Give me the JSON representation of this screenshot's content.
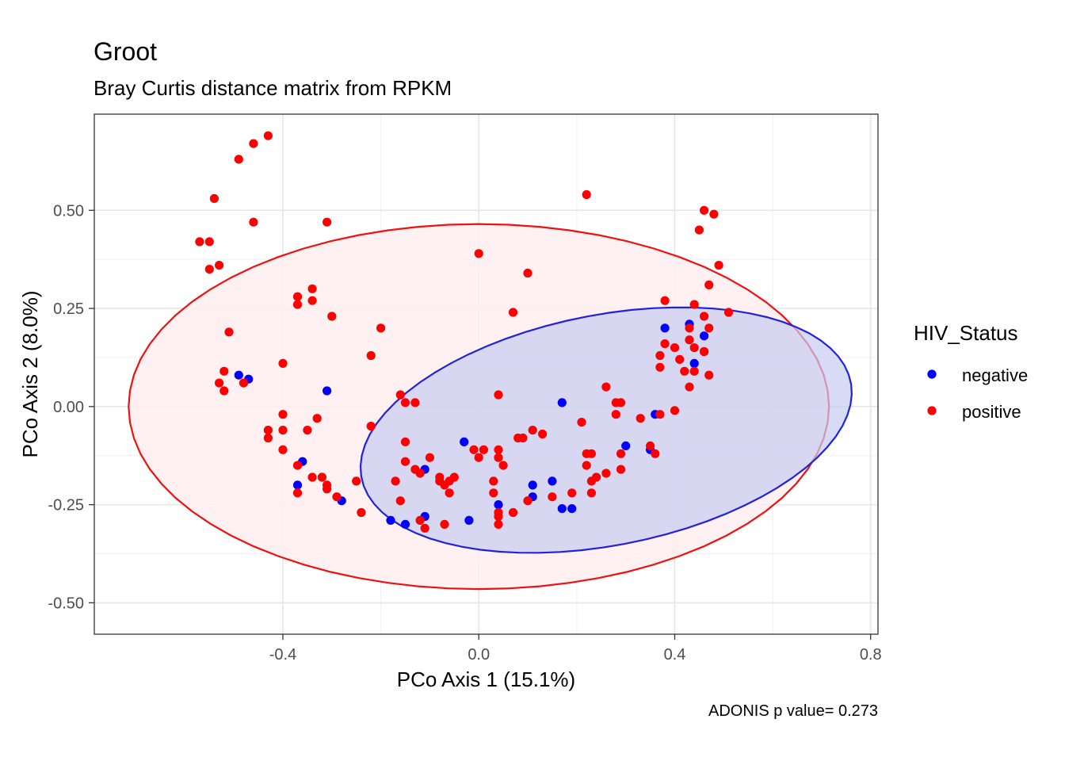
{
  "chart_data": {
    "type": "scatter",
    "title": "Groot",
    "subtitle": "Bray Curtis distance matrix from RPKM",
    "xlabel": "PCo Axis 1 (15.1%)",
    "ylabel": "PCo Axis 2 (8.0%)",
    "caption": "ADONIS p value= 0.273",
    "xlim": [
      -0.785,
      0.815
    ],
    "ylim": [
      -0.58,
      0.745
    ],
    "x_ticks": [
      -0.4,
      0.0,
      0.4,
      0.8
    ],
    "x_tick_labels": [
      "-0.4",
      "0.0",
      "0.4",
      "0.8"
    ],
    "y_ticks": [
      -0.5,
      -0.25,
      0.0,
      0.25,
      0.5
    ],
    "y_tick_labels": [
      "-0.50",
      "-0.25",
      "0.00",
      "0.25",
      "0.50"
    ],
    "grid": true,
    "legend": {
      "title": "HIV_Status",
      "position": "right",
      "entries": [
        "negative",
        "positive"
      ]
    },
    "ellipses": [
      {
        "series": "positive",
        "center": [
          0.0,
          0.0
        ],
        "semi_axes": [
          0.715,
          0.465
        ],
        "angle_deg": 0,
        "stroke": "#ee1111",
        "fill": "#ffeeee",
        "fill_opacity": 0.85
      },
      {
        "series": "negative",
        "center": [
          0.26,
          -0.06
        ],
        "semi_axes": [
          0.515,
          0.29
        ],
        "angle_deg": 16,
        "stroke": "#2222dd",
        "fill": "#c6ccf2",
        "fill_opacity": 0.7
      }
    ],
    "series": [
      {
        "name": "negative",
        "color": "#0000ff",
        "points": [
          [
            -0.49,
            0.08
          ],
          [
            -0.47,
            0.07
          ],
          [
            -0.31,
            0.04
          ],
          [
            -0.36,
            -0.14
          ],
          [
            -0.37,
            -0.2
          ],
          [
            -0.28,
            -0.24
          ],
          [
            -0.18,
            -0.29
          ],
          [
            -0.15,
            -0.3
          ],
          [
            -0.11,
            -0.16
          ],
          [
            -0.11,
            -0.28
          ],
          [
            -0.03,
            -0.09
          ],
          [
            -0.02,
            -0.29
          ],
          [
            0.04,
            -0.25
          ],
          [
            0.11,
            -0.2
          ],
          [
            0.11,
            -0.23
          ],
          [
            0.15,
            -0.19
          ],
          [
            0.17,
            0.01
          ],
          [
            0.17,
            -0.26
          ],
          [
            0.19,
            -0.26
          ],
          [
            0.3,
            -0.1
          ],
          [
            0.35,
            -0.11
          ],
          [
            0.36,
            -0.02
          ],
          [
            0.38,
            0.2
          ],
          [
            0.43,
            0.21
          ],
          [
            0.44,
            0.11
          ],
          [
            0.46,
            0.18
          ],
          [
            0.46,
            0.14
          ]
        ]
      },
      {
        "name": "positive",
        "color": "#ff0000",
        "points": [
          [
            -0.43,
            0.69
          ],
          [
            -0.46,
            0.67
          ],
          [
            -0.49,
            0.63
          ],
          [
            -0.54,
            0.53
          ],
          [
            -0.46,
            0.47
          ],
          [
            -0.57,
            0.42
          ],
          [
            -0.55,
            0.42
          ],
          [
            -0.53,
            0.36
          ],
          [
            -0.55,
            0.35
          ],
          [
            -0.31,
            0.47
          ],
          [
            -0.34,
            0.3
          ],
          [
            -0.37,
            0.28
          ],
          [
            -0.34,
            0.27
          ],
          [
            -0.37,
            0.26
          ],
          [
            -0.3,
            0.23
          ],
          [
            -0.51,
            0.19
          ],
          [
            -0.4,
            0.11
          ],
          [
            -0.52,
            0.09
          ],
          [
            -0.53,
            0.06
          ],
          [
            -0.48,
            0.06
          ],
          [
            -0.52,
            0.04
          ],
          [
            -0.4,
            -0.02
          ],
          [
            -0.33,
            -0.03
          ],
          [
            -0.43,
            -0.06
          ],
          [
            -0.4,
            -0.06
          ],
          [
            -0.35,
            -0.06
          ],
          [
            -0.43,
            -0.08
          ],
          [
            -0.4,
            -0.11
          ],
          [
            -0.37,
            -0.15
          ],
          [
            -0.34,
            -0.18
          ],
          [
            -0.32,
            -0.18
          ],
          [
            -0.31,
            -0.2
          ],
          [
            -0.31,
            -0.21
          ],
          [
            -0.37,
            -0.22
          ],
          [
            -0.29,
            -0.23
          ],
          [
            -0.25,
            -0.19
          ],
          [
            -0.24,
            -0.27
          ],
          [
            -0.2,
            0.2
          ],
          [
            -0.22,
            0.13
          ],
          [
            -0.22,
            -0.05
          ],
          [
            -0.16,
            0.03
          ],
          [
            -0.15,
            0.01
          ],
          [
            -0.13,
            0.01
          ],
          [
            -0.15,
            -0.09
          ],
          [
            -0.17,
            -0.19
          ],
          [
            -0.16,
            -0.24
          ],
          [
            -0.15,
            -0.14
          ],
          [
            -0.13,
            -0.16
          ],
          [
            -0.12,
            -0.17
          ],
          [
            -0.1,
            -0.13
          ],
          [
            -0.12,
            -0.29
          ],
          [
            -0.11,
            -0.31
          ],
          [
            -0.08,
            -0.18
          ],
          [
            -0.08,
            -0.19
          ],
          [
            -0.07,
            -0.2
          ],
          [
            -0.06,
            -0.19
          ],
          [
            -0.05,
            -0.18
          ],
          [
            -0.07,
            -0.3
          ],
          [
            -0.06,
            -0.22
          ],
          [
            -0.01,
            -0.11
          ],
          [
            0.0,
            -0.13
          ],
          [
            0.01,
            -0.11
          ],
          [
            0.0,
            0.39
          ],
          [
            0.04,
            0.03
          ],
          [
            0.04,
            -0.11
          ],
          [
            0.04,
            -0.13
          ],
          [
            0.05,
            -0.15
          ],
          [
            0.03,
            -0.19
          ],
          [
            0.03,
            -0.22
          ],
          [
            0.04,
            -0.27
          ],
          [
            0.04,
            -0.28
          ],
          [
            0.04,
            -0.3
          ],
          [
            0.07,
            -0.27
          ],
          [
            0.07,
            0.24
          ],
          [
            0.08,
            -0.08
          ],
          [
            0.09,
            -0.08
          ],
          [
            0.1,
            0.34
          ],
          [
            0.11,
            -0.06
          ],
          [
            0.13,
            -0.07
          ],
          [
            0.1,
            -0.24
          ],
          [
            0.15,
            -0.23
          ],
          [
            0.19,
            -0.22
          ],
          [
            0.21,
            -0.04
          ],
          [
            0.22,
            -0.12
          ],
          [
            0.22,
            -0.15
          ],
          [
            0.23,
            -0.12
          ],
          [
            0.23,
            -0.19
          ],
          [
            0.24,
            -0.18
          ],
          [
            0.26,
            -0.17
          ],
          [
            0.23,
            -0.22
          ],
          [
            0.26,
            0.05
          ],
          [
            0.28,
            0.01
          ],
          [
            0.29,
            0.01
          ],
          [
            0.28,
            -0.02
          ],
          [
            0.29,
            -0.12
          ],
          [
            0.29,
            -0.16
          ],
          [
            0.22,
            0.54
          ],
          [
            0.33,
            -0.03
          ],
          [
            0.35,
            -0.1
          ],
          [
            0.36,
            -0.12
          ],
          [
            0.37,
            -0.02
          ],
          [
            0.38,
            0.27
          ],
          [
            0.38,
            0.16
          ],
          [
            0.37,
            0.13
          ],
          [
            0.37,
            0.1
          ],
          [
            0.4,
            0.15
          ],
          [
            0.4,
            -0.01
          ],
          [
            0.41,
            0.12
          ],
          [
            0.42,
            0.09
          ],
          [
            0.44,
            0.26
          ],
          [
            0.43,
            0.2
          ],
          [
            0.43,
            0.17
          ],
          [
            0.44,
            0.15
          ],
          [
            0.44,
            0.09
          ],
          [
            0.43,
            0.05
          ],
          [
            0.45,
            0.45
          ],
          [
            0.46,
            0.5
          ],
          [
            0.48,
            0.49
          ],
          [
            0.49,
            0.36
          ],
          [
            0.47,
            0.31
          ],
          [
            0.46,
            0.23
          ],
          [
            0.47,
            0.2
          ],
          [
            0.46,
            0.14
          ],
          [
            0.47,
            0.08
          ],
          [
            0.51,
            0.24
          ]
        ]
      }
    ]
  }
}
